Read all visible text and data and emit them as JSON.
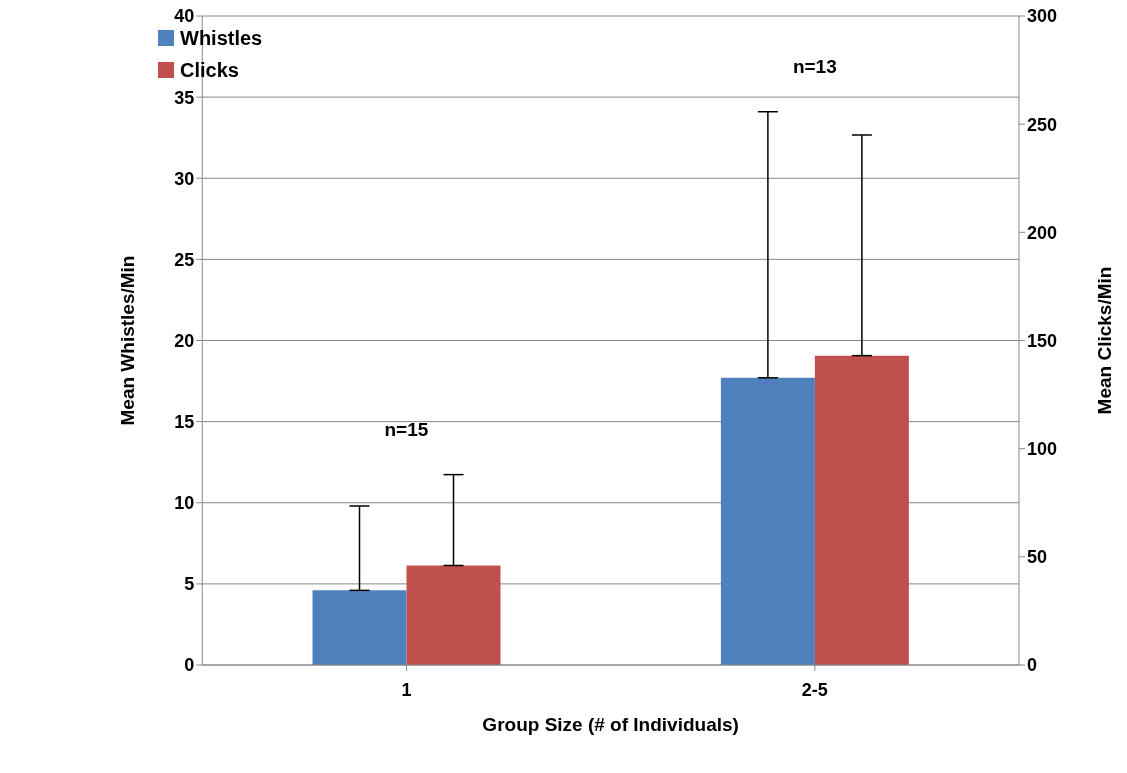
{
  "chart_data": {
    "type": "bar",
    "xlabel": "Group Size (# of Individuals)",
    "ylabel": "Mean Whistles/Min",
    "y2label": "Mean Clicks/Min",
    "categories": [
      "1",
      "2-5"
    ],
    "series": [
      {
        "name": "Whistles",
        "color": "#4f81bd",
        "values": [
          4.6,
          17.7
        ],
        "errors": [
          [
            4.6,
            9.8
          ],
          [
            17.7,
            34.1
          ]
        ]
      },
      {
        "name": "Clicks",
        "color": "#c0504d",
        "values": [
          46,
          143
        ],
        "errors": [
          [
            46,
            88
          ],
          [
            143,
            245
          ]
        ],
        "axis": "y2"
      }
    ],
    "ylim": [
      0,
      40
    ],
    "yticks": [
      0,
      5,
      10,
      15,
      20,
      25,
      30,
      35,
      40
    ],
    "y2lim": [
      0,
      300
    ],
    "y2ticks": [
      0,
      50,
      100,
      150,
      200,
      250,
      300
    ],
    "grid": "y",
    "legend": "top left",
    "annotations": [
      "n=15",
      "n=13"
    ]
  }
}
